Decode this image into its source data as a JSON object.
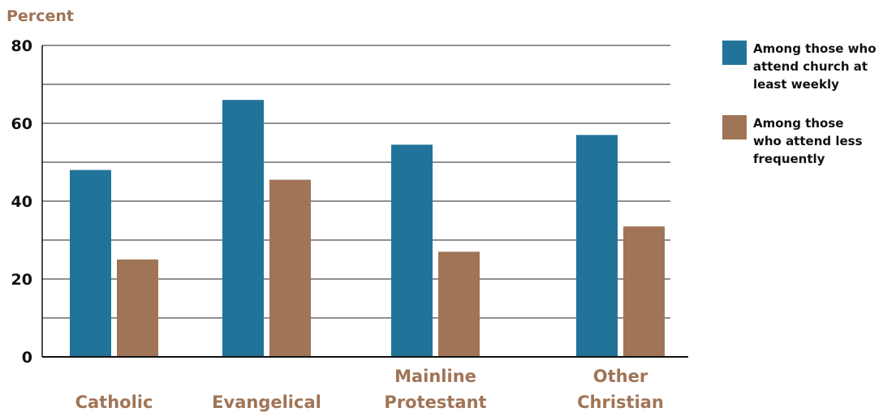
{
  "colors": {
    "weekly": "#21739A",
    "less": "#A07456",
    "accent_text": "#A07456",
    "gridline": "#222222"
  },
  "chart_data": {
    "type": "bar",
    "ylabel": "Percent",
    "ylim": [
      0,
      80
    ],
    "y_ticks": [
      0,
      20,
      40,
      60,
      80
    ],
    "grid": true,
    "legend_position": "right",
    "categories": [
      [
        "Catholic"
      ],
      [
        "Evangelical"
      ],
      [
        "Mainline",
        "Protestant"
      ],
      [
        "Other",
        "Christian"
      ]
    ],
    "series": [
      {
        "name": [
          "Among those who",
          "attend church at",
          "least weekly"
        ],
        "values": [
          48,
          66,
          54.5,
          57
        ]
      },
      {
        "name": [
          "Among those",
          "who attend less",
          "frequently"
        ],
        "values": [
          25,
          45.5,
          27,
          33.5
        ]
      }
    ]
  }
}
